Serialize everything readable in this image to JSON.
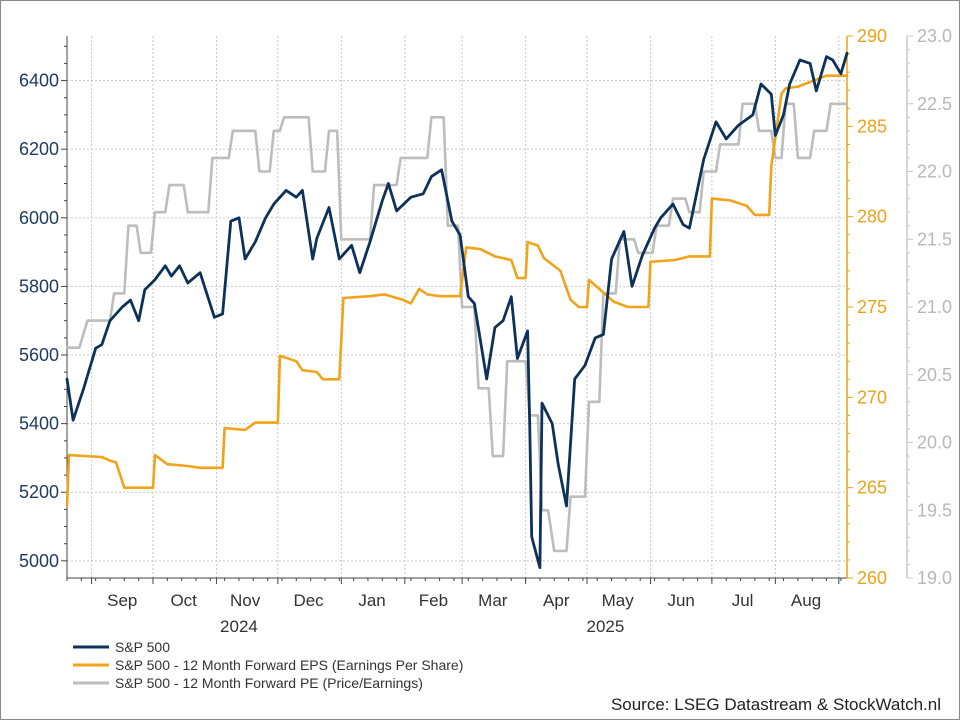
{
  "chart_data": {
    "type": "line",
    "source": "Source: LSEG Datastream & StockWatch.nl",
    "x_ticks": [
      "Sep",
      "Oct",
      "Nov",
      "Dec",
      "Jan",
      "Feb",
      "Mar",
      "Apr",
      "May",
      "Jun",
      "Jul",
      "Aug"
    ],
    "years": [
      "2024",
      "2025"
    ],
    "axes": {
      "left": {
        "ticks": [
          "5000",
          "5200",
          "5400",
          "5600",
          "5800",
          "6000",
          "6200",
          "6400"
        ],
        "ylim": [
          4950,
          6530
        ]
      },
      "right1": {
        "ticks": [
          "260",
          "265",
          "270",
          "275",
          "280",
          "285",
          "290"
        ],
        "ylim": [
          260,
          290
        ]
      },
      "right2": {
        "ticks": [
          "19.0",
          "19.5",
          "20.0",
          "20.5",
          "21.0",
          "21.5",
          "22.0",
          "22.5",
          "23.0"
        ],
        "ylim": [
          19.0,
          23.0
        ]
      }
    },
    "series": [
      {
        "name": "S&P 500",
        "color": "#0d3158",
        "axis": "left",
        "points": [
          [
            "2024-08-20",
            5530
          ],
          [
            "2024-08-23",
            5410
          ],
          [
            "2024-08-28",
            5500
          ],
          [
            "2024-09-03",
            5620
          ],
          [
            "2024-09-06",
            5630
          ],
          [
            "2024-09-10",
            5700
          ],
          [
            "2024-09-16",
            5740
          ],
          [
            "2024-09-20",
            5760
          ],
          [
            "2024-09-24",
            5700
          ],
          [
            "2024-09-27",
            5790
          ],
          [
            "2024-10-02",
            5820
          ],
          [
            "2024-10-07",
            5860
          ],
          [
            "2024-10-10",
            5830
          ],
          [
            "2024-10-14",
            5860
          ],
          [
            "2024-10-18",
            5810
          ],
          [
            "2024-10-24",
            5840
          ],
          [
            "2024-10-31",
            5710
          ],
          [
            "2024-11-04",
            5720
          ],
          [
            "2024-11-08",
            5990
          ],
          [
            "2024-11-12",
            6000
          ],
          [
            "2024-11-15",
            5880
          ],
          [
            "2024-11-20",
            5930
          ],
          [
            "2024-11-25",
            6000
          ],
          [
            "2024-11-29",
            6040
          ],
          [
            "2024-12-05",
            6080
          ],
          [
            "2024-12-10",
            6060
          ],
          [
            "2024-12-13",
            6080
          ],
          [
            "2024-12-18",
            5880
          ],
          [
            "2024-12-20",
            5940
          ],
          [
            "2024-12-26",
            6030
          ],
          [
            "2024-12-31",
            5880
          ],
          [
            "2025-01-06",
            5920
          ],
          [
            "2025-01-10",
            5840
          ],
          [
            "2025-01-15",
            5930
          ],
          [
            "2025-01-21",
            6050
          ],
          [
            "2025-01-24",
            6100
          ],
          [
            "2025-01-28",
            6020
          ],
          [
            "2025-02-04",
            6060
          ],
          [
            "2025-02-10",
            6070
          ],
          [
            "2025-02-14",
            6120
          ],
          [
            "2025-02-19",
            6140
          ],
          [
            "2025-02-24",
            5990
          ],
          [
            "2025-02-28",
            5950
          ],
          [
            "2025-03-04",
            5770
          ],
          [
            "2025-03-07",
            5750
          ],
          [
            "2025-03-13",
            5530
          ],
          [
            "2025-03-17",
            5680
          ],
          [
            "2025-03-21",
            5700
          ],
          [
            "2025-03-25",
            5770
          ],
          [
            "2025-03-28",
            5590
          ],
          [
            "2025-04-02",
            5670
          ],
          [
            "2025-04-03",
            5400
          ],
          [
            "2025-04-04",
            5070
          ],
          [
            "2025-04-08",
            4980
          ],
          [
            "2025-04-09",
            5460
          ],
          [
            "2025-04-14",
            5400
          ],
          [
            "2025-04-17",
            5280
          ],
          [
            "2025-04-21",
            5160
          ],
          [
            "2025-04-25",
            5530
          ],
          [
            "2025-04-30",
            5570
          ],
          [
            "2025-05-05",
            5650
          ],
          [
            "2025-05-09",
            5660
          ],
          [
            "2025-05-13",
            5880
          ],
          [
            "2025-05-19",
            5960
          ],
          [
            "2025-05-23",
            5800
          ],
          [
            "2025-05-28",
            5890
          ],
          [
            "2025-06-03",
            5970
          ],
          [
            "2025-06-06",
            6000
          ],
          [
            "2025-06-12",
            6040
          ],
          [
            "2025-06-17",
            5980
          ],
          [
            "2025-06-20",
            5970
          ],
          [
            "2025-06-27",
            6170
          ],
          [
            "2025-07-03",
            6280
          ],
          [
            "2025-07-08",
            6230
          ],
          [
            "2025-07-14",
            6270
          ],
          [
            "2025-07-21",
            6300
          ],
          [
            "2025-07-25",
            6390
          ],
          [
            "2025-07-30",
            6360
          ],
          [
            "2025-08-01",
            6240
          ],
          [
            "2025-08-05",
            6300
          ],
          [
            "2025-08-08",
            6390
          ],
          [
            "2025-08-13",
            6460
          ],
          [
            "2025-08-18",
            6450
          ],
          [
            "2025-08-21",
            6370
          ],
          [
            "2025-08-26",
            6470
          ],
          [
            "2025-08-29",
            6460
          ],
          [
            "2025-09-02",
            6420
          ],
          [
            "2025-09-05",
            6480
          ]
        ]
      },
      {
        "name": "S&P 500 - 12 Month Forward EPS (Earnings Per Share)",
        "color": "#f0a31b",
        "axis": "right1",
        "points": [
          [
            "2024-08-20",
            264
          ],
          [
            "2024-08-21",
            266.8
          ],
          [
            "2024-09-06",
            266.7
          ],
          [
            "2024-09-10",
            266.5
          ],
          [
            "2024-09-13",
            266.4
          ],
          [
            "2024-09-17",
            265.0
          ],
          [
            "2024-10-01",
            265.0
          ],
          [
            "2024-10-02",
            266.8
          ],
          [
            "2024-10-08",
            266.3
          ],
          [
            "2024-10-18",
            266.2
          ],
          [
            "2024-10-24",
            266.1
          ],
          [
            "2024-11-04",
            266.1
          ],
          [
            "2024-11-05",
            268.3
          ],
          [
            "2024-11-15",
            268.2
          ],
          [
            "2024-11-20",
            268.6
          ],
          [
            "2024-12-01",
            268.6
          ],
          [
            "2024-12-02",
            272.3
          ],
          [
            "2024-12-10",
            272.0
          ],
          [
            "2024-12-13",
            271.5
          ],
          [
            "2024-12-20",
            271.4
          ],
          [
            "2024-12-23",
            271.0
          ],
          [
            "2024-12-31",
            271.0
          ],
          [
            "2025-01-02",
            275.5
          ],
          [
            "2025-01-15",
            275.6
          ],
          [
            "2025-01-22",
            275.7
          ],
          [
            "2025-01-31",
            275.4
          ],
          [
            "2025-02-04",
            275.2
          ],
          [
            "2025-02-08",
            276.0
          ],
          [
            "2025-02-12",
            275.7
          ],
          [
            "2025-02-18",
            275.6
          ],
          [
            "2025-02-28",
            275.6
          ],
          [
            "2025-03-03",
            278.3
          ],
          [
            "2025-03-10",
            278.2
          ],
          [
            "2025-03-17",
            277.8
          ],
          [
            "2025-03-25",
            277.6
          ],
          [
            "2025-03-28",
            276.6
          ],
          [
            "2025-04-01",
            276.6
          ],
          [
            "2025-04-02",
            278.6
          ],
          [
            "2025-04-07",
            278.4
          ],
          [
            "2025-04-10",
            277.7
          ],
          [
            "2025-04-18",
            277.0
          ],
          [
            "2025-04-23",
            275.4
          ],
          [
            "2025-04-27",
            275.0
          ],
          [
            "2025-05-01",
            275.0
          ],
          [
            "2025-05-02",
            276.5
          ],
          [
            "2025-05-09",
            275.8
          ],
          [
            "2025-05-14",
            275.3
          ],
          [
            "2025-05-21",
            275.0
          ],
          [
            "2025-05-31",
            275.0
          ],
          [
            "2025-06-01",
            277.5
          ],
          [
            "2025-06-13",
            277.6
          ],
          [
            "2025-06-20",
            277.8
          ],
          [
            "2025-06-30",
            277.8
          ],
          [
            "2025-07-01",
            281.0
          ],
          [
            "2025-07-10",
            280.9
          ],
          [
            "2025-07-18",
            280.6
          ],
          [
            "2025-07-22",
            280.1
          ],
          [
            "2025-07-29",
            280.1
          ],
          [
            "2025-07-30",
            282.8
          ],
          [
            "2025-08-04",
            286.8
          ],
          [
            "2025-08-06",
            287.1
          ],
          [
            "2025-08-12",
            287.2
          ],
          [
            "2025-08-19",
            287.5
          ],
          [
            "2025-08-26",
            287.8
          ],
          [
            "2025-09-05",
            287.8
          ]
        ]
      },
      {
        "name": "S&P 500 - 12 Month Forward PE (Price/Earnings)",
        "color": "#bdbdbd",
        "axis": "right2",
        "points": [
          [
            "2024-08-20",
            20.7
          ],
          [
            "2024-08-26",
            20.7
          ],
          [
            "2024-08-30",
            20.9
          ],
          [
            "2024-09-10",
            20.9
          ],
          [
            "2024-09-12",
            21.1
          ],
          [
            "2024-09-17",
            21.1
          ],
          [
            "2024-09-19",
            21.6
          ],
          [
            "2024-09-23",
            21.6
          ],
          [
            "2024-09-25",
            21.4
          ],
          [
            "2024-09-30",
            21.4
          ],
          [
            "2024-10-02",
            21.7
          ],
          [
            "2024-10-07",
            21.7
          ],
          [
            "2024-10-09",
            21.9
          ],
          [
            "2024-10-16",
            21.9
          ],
          [
            "2024-10-18",
            21.7
          ],
          [
            "2024-10-28",
            21.7
          ],
          [
            "2024-10-30",
            22.1
          ],
          [
            "2024-11-07",
            22.1
          ],
          [
            "2024-11-09",
            22.3
          ],
          [
            "2024-11-20",
            22.3
          ],
          [
            "2024-11-22",
            22.0
          ],
          [
            "2024-11-27",
            22.0
          ],
          [
            "2024-11-29",
            22.3
          ],
          [
            "2024-12-02",
            22.3
          ],
          [
            "2024-12-04",
            22.4
          ],
          [
            "2024-12-16",
            22.4
          ],
          [
            "2024-12-18",
            22.0
          ],
          [
            "2024-12-24",
            22.0
          ],
          [
            "2024-12-26",
            22.3
          ],
          [
            "2024-12-30",
            22.3
          ],
          [
            "2025-01-01",
            21.5
          ],
          [
            "2025-01-15",
            21.5
          ],
          [
            "2025-01-17",
            21.9
          ],
          [
            "2025-01-28",
            21.9
          ],
          [
            "2025-01-30",
            22.1
          ],
          [
            "2025-02-12",
            22.1
          ],
          [
            "2025-02-14",
            22.4
          ],
          [
            "2025-02-20",
            22.4
          ],
          [
            "2025-02-22",
            21.6
          ],
          [
            "2025-02-27",
            21.6
          ],
          [
            "2025-03-01",
            21.0
          ],
          [
            "2025-03-07",
            21.0
          ],
          [
            "2025-03-09",
            20.4
          ],
          [
            "2025-03-14",
            20.4
          ],
          [
            "2025-03-16",
            19.9
          ],
          [
            "2025-03-21",
            19.9
          ],
          [
            "2025-03-23",
            20.6
          ],
          [
            "2025-04-01",
            20.6
          ],
          [
            "2025-04-03",
            20.2
          ],
          [
            "2025-04-07",
            20.2
          ],
          [
            "2025-04-09",
            19.5
          ],
          [
            "2025-04-12",
            19.5
          ],
          [
            "2025-04-15",
            19.2
          ],
          [
            "2025-04-21",
            19.2
          ],
          [
            "2025-04-23",
            19.6
          ],
          [
            "2025-04-30",
            19.6
          ],
          [
            "2025-05-02",
            20.3
          ],
          [
            "2025-05-07",
            20.3
          ],
          [
            "2025-05-09",
            21.1
          ],
          [
            "2025-05-15",
            21.1
          ],
          [
            "2025-05-17",
            21.5
          ],
          [
            "2025-05-24",
            21.5
          ],
          [
            "2025-05-26",
            21.4
          ],
          [
            "2025-06-02",
            21.4
          ],
          [
            "2025-06-04",
            21.6
          ],
          [
            "2025-06-10",
            21.6
          ],
          [
            "2025-06-12",
            21.8
          ],
          [
            "2025-06-18",
            21.8
          ],
          [
            "2025-06-20",
            21.7
          ],
          [
            "2025-06-25",
            21.7
          ],
          [
            "2025-06-27",
            22.0
          ],
          [
            "2025-07-03",
            22.0
          ],
          [
            "2025-07-05",
            22.2
          ],
          [
            "2025-07-14",
            22.2
          ],
          [
            "2025-07-16",
            22.5
          ],
          [
            "2025-07-22",
            22.5
          ],
          [
            "2025-07-24",
            22.3
          ],
          [
            "2025-07-30",
            22.3
          ],
          [
            "2025-08-01",
            22.1
          ],
          [
            "2025-08-04",
            22.1
          ],
          [
            "2025-08-06",
            22.5
          ],
          [
            "2025-08-10",
            22.5
          ],
          [
            "2025-08-12",
            22.1
          ],
          [
            "2025-08-18",
            22.1
          ],
          [
            "2025-08-20",
            22.3
          ],
          [
            "2025-08-26",
            22.3
          ],
          [
            "2025-08-28",
            22.5
          ],
          [
            "2025-09-05",
            22.5
          ]
        ]
      }
    ],
    "grid": true,
    "legend_position": "bottom-left"
  }
}
